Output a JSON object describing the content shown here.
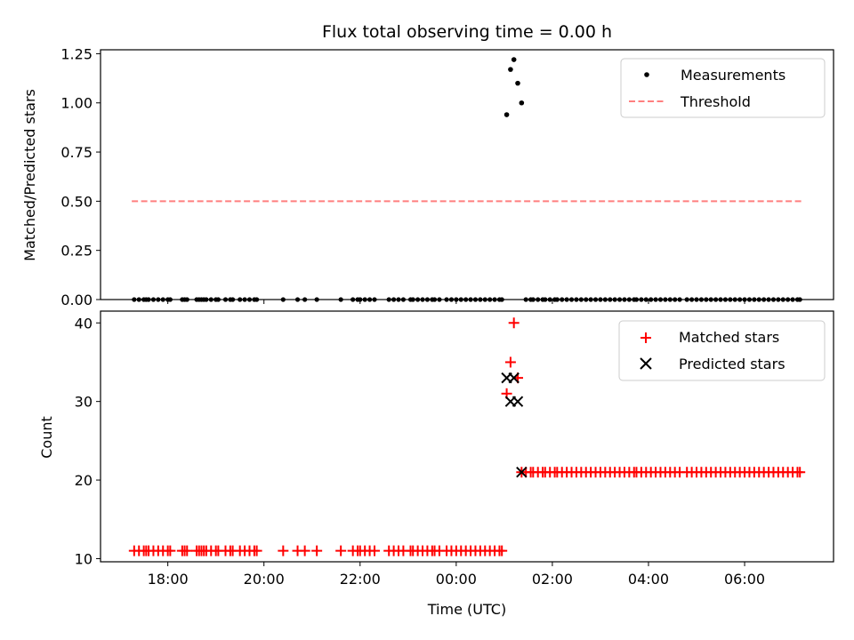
{
  "chart_data": {
    "type": "scatter",
    "title": "Flux total observing time = 0.00 h",
    "xlabel": "Time (UTC)",
    "x_tick_labels": [
      "18:00",
      "20:00",
      "22:00",
      "00:00",
      "02:00",
      "04:00",
      "06:00"
    ],
    "x_tick_hours": [
      18,
      20,
      22,
      24,
      26,
      28,
      30
    ],
    "xlim_hours": [
      16.6,
      31.85
    ],
    "panels": [
      {
        "ylabel": "Matched/Predicted stars",
        "ylim": [
          0,
          1.27
        ],
        "y_ticks": [
          0,
          0.25,
          0.5,
          0.75,
          1.0,
          1.25
        ],
        "y_tick_labels": [
          "0.00",
          "0.25",
          "0.50",
          "0.75",
          "1.00",
          "1.25"
        ],
        "legend": {
          "location": "top-right",
          "entries": [
            "Measurements",
            "Threshold"
          ]
        },
        "threshold": {
          "name": "Threshold",
          "y": 0.5,
          "x_range_hours": [
            17.25,
            31.2
          ],
          "color": "#ff7f7f"
        },
        "series": [
          {
            "name": "Measurements",
            "marker": "dot",
            "color": "#000000",
            "points": [
              [
                25.05,
                0.94
              ],
              [
                25.13,
                1.17
              ],
              [
                25.2,
                1.22
              ],
              [
                25.28,
                1.1
              ],
              [
                25.36,
                1.0
              ]
            ]
          }
        ]
      },
      {
        "ylabel": "Count",
        "ylim": [
          9.6,
          41.5
        ],
        "y_ticks": [
          10,
          20,
          30,
          40
        ],
        "y_tick_labels": [
          "10",
          "20",
          "30",
          "40"
        ],
        "legend": {
          "location": "top-right",
          "entries": [
            "Matched stars",
            "Predicted stars"
          ]
        },
        "series": [
          {
            "name": "Matched stars",
            "marker": "plus",
            "color": "#ff0000",
            "points": [
              [
                25.05,
                31
              ],
              [
                25.13,
                35
              ],
              [
                25.2,
                40
              ],
              [
                25.28,
                33
              ],
              [
                25.36,
                21
              ]
            ]
          },
          {
            "name": "Predicted stars",
            "marker": "x",
            "color": "#000000",
            "points": [
              [
                25.05,
                33
              ],
              [
                25.13,
                30
              ],
              [
                25.2,
                33
              ],
              [
                25.28,
                30
              ],
              [
                25.36,
                21
              ]
            ]
          }
        ],
        "matched_early_value": 11,
        "matched_late_value": 21
      }
    ],
    "time_samples_early_hours": [
      17.3,
      17.4,
      17.5,
      17.55,
      17.6,
      17.7,
      17.8,
      17.9,
      18.0,
      18.05,
      18.3,
      18.35,
      18.4,
      18.6,
      18.65,
      18.7,
      18.75,
      18.8,
      18.9,
      19.0,
      19.05,
      19.2,
      19.3,
      19.35,
      19.5,
      19.6,
      19.7,
      19.8,
      19.85,
      20.4,
      20.7,
      20.85,
      21.1,
      21.6,
      21.85,
      21.95,
      22.0,
      22.1,
      22.2,
      22.3,
      22.6,
      22.7,
      22.8,
      22.9,
      23.05,
      23.1,
      23.2,
      23.3,
      23.4,
      23.5,
      23.55,
      23.65,
      23.8,
      23.9,
      24.0,
      24.1,
      24.2,
      24.3,
      24.4,
      24.5,
      24.6,
      24.7,
      24.8,
      24.9,
      24.95
    ],
    "time_samples_late_hours": [
      25.45,
      25.55,
      25.6,
      25.7,
      25.8,
      25.85,
      25.95,
      26.05,
      26.1,
      26.2,
      26.3,
      26.4,
      26.5,
      26.6,
      26.7,
      26.8,
      26.9,
      27.0,
      27.1,
      27.2,
      27.3,
      27.4,
      27.5,
      27.6,
      27.7,
      27.75,
      27.85,
      27.95,
      28.05,
      28.15,
      28.25,
      28.35,
      28.45,
      28.55,
      28.65,
      28.8,
      28.9,
      29.0,
      29.1,
      29.2,
      29.3,
      29.4,
      29.5,
      29.6,
      29.7,
      29.8,
      29.9,
      30.0,
      30.1,
      30.2,
      30.3,
      30.4,
      30.5,
      30.6,
      30.7,
      30.8,
      30.9,
      31.0,
      31.1,
      31.15
    ]
  }
}
